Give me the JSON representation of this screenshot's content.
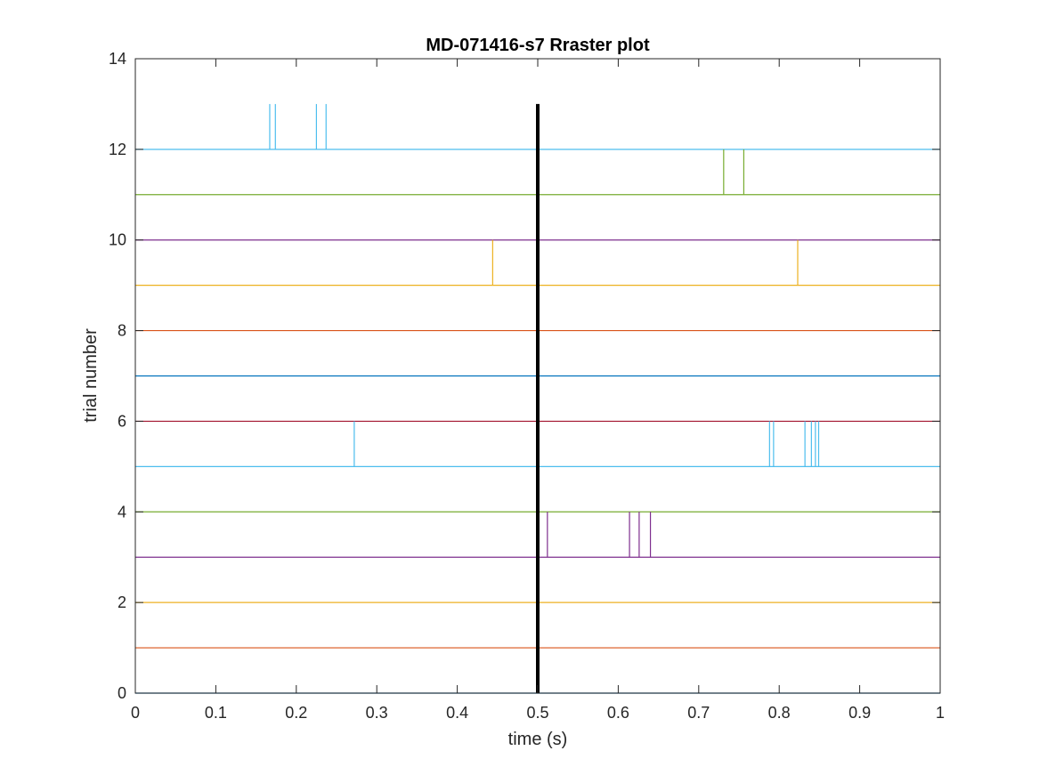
{
  "chart_data": {
    "type": "raster",
    "title": "MD-071416-s7 Rraster plot",
    "xlabel": "time (s)",
    "ylabel": "trial number",
    "xlim": [
      0,
      1
    ],
    "ylim": [
      0,
      14
    ],
    "xticks": [
      "0",
      "0.1",
      "0.2",
      "0.3",
      "0.4",
      "0.5",
      "0.6",
      "0.7",
      "0.8",
      "0.9",
      "1"
    ],
    "yticks": [
      "0",
      "2",
      "4",
      "6",
      "8",
      "10",
      "12",
      "14"
    ],
    "event_marker": {
      "x": 0.5,
      "y_range": [
        0,
        13
      ],
      "color": "#000000"
    },
    "trials": [
      {
        "trial": 0,
        "color": "#0072BD",
        "spikes": []
      },
      {
        "trial": 1,
        "color": "#D95319",
        "spikes": []
      },
      {
        "trial": 2,
        "color": "#EDB120",
        "spikes": []
      },
      {
        "trial": 3,
        "color": "#7E2F8E",
        "spikes": [
          0.512,
          0.614,
          0.626,
          0.64
        ]
      },
      {
        "trial": 4,
        "color": "#77AC30",
        "spikes": []
      },
      {
        "trial": 5,
        "color": "#4DBEEE",
        "spikes": [
          0.272,
          0.788,
          0.793,
          0.832,
          0.84,
          0.845,
          0.849
        ]
      },
      {
        "trial": 6,
        "color": "#A2142F",
        "spikes": []
      },
      {
        "trial": 7,
        "color": "#0072BD",
        "spikes": []
      },
      {
        "trial": 8,
        "color": "#D95319",
        "spikes": []
      },
      {
        "trial": 9,
        "color": "#EDB120",
        "spikes": [
          0.444,
          0.823
        ]
      },
      {
        "trial": 10,
        "color": "#7E2F8E",
        "spikes": []
      },
      {
        "trial": 11,
        "color": "#77AC30",
        "spikes": [
          0.731,
          0.756
        ]
      },
      {
        "trial": 12,
        "color": "#4DBEEE",
        "spikes": [
          0.167,
          0.174,
          0.225,
          0.237
        ]
      }
    ]
  }
}
